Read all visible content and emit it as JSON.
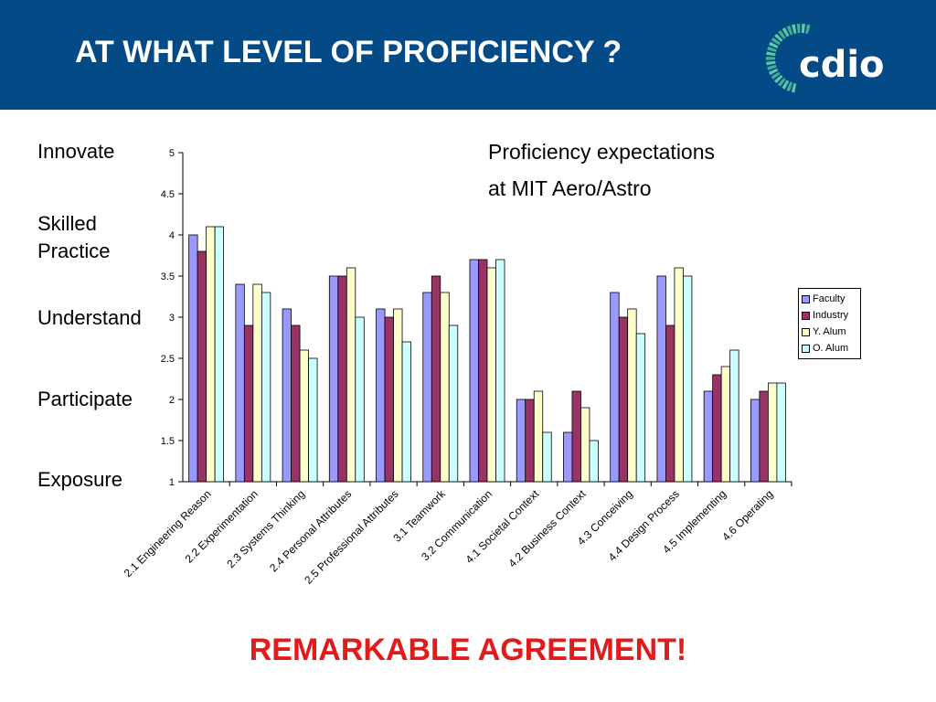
{
  "slide": {
    "title": "AT WHAT LEVEL OF PROFICIENCY ?",
    "logo_text": "cdio",
    "caption_line1": "Proficiency expectations",
    "caption_line2": "at MIT Aero/Astro",
    "remark": "REMARKABLE AGREEMENT!",
    "levels": [
      "Innovate",
      "Skilled Practice",
      "Understand",
      "Participate",
      "Exposure"
    ],
    "colors": {
      "header": "#034a86",
      "remark": "#e21a1a"
    }
  },
  "chart_data": {
    "type": "bar",
    "title": "",
    "xlabel": "",
    "ylabel": "",
    "ylim": [
      1,
      5
    ],
    "yticks": [
      "1",
      "1.5",
      "2",
      "2.5",
      "3",
      "3.5",
      "4",
      "4.5",
      "5"
    ],
    "grid": false,
    "legend_position": "right",
    "categories": [
      "2.1 Engineering Reason",
      "2.2 Experimentation",
      "2.3 Systems Thinking",
      "2.4 Personal Attributes",
      "2.5 Professional Attributes",
      "3.1 Teamwork",
      "3.2 Communication",
      "4.1 Societal Context",
      "4.2 Business Context",
      "4.3 Conceiving",
      "4.4 Design Process",
      "4.5 Implementing",
      "4.6 Operating"
    ],
    "series": [
      {
        "name": "Faculty",
        "color": "#9999ff",
        "values": [
          4.0,
          3.4,
          3.1,
          3.5,
          3.1,
          3.3,
          3.7,
          2.0,
          1.6,
          3.3,
          3.5,
          2.1,
          2.0
        ]
      },
      {
        "name": "Industry",
        "color": "#993366",
        "values": [
          3.8,
          2.9,
          2.9,
          3.5,
          3.0,
          3.5,
          3.7,
          2.0,
          2.1,
          3.0,
          2.9,
          2.3,
          2.1
        ]
      },
      {
        "name": "Y. Alum",
        "color": "#ffffcc",
        "values": [
          4.1,
          3.4,
          2.6,
          3.6,
          3.1,
          3.3,
          3.6,
          2.1,
          1.9,
          3.1,
          3.6,
          2.4,
          2.2
        ]
      },
      {
        "name": "O. Alum",
        "color": "#ccffff",
        "values": [
          4.1,
          3.3,
          2.5,
          3.0,
          2.7,
          2.9,
          3.7,
          1.6,
          1.5,
          2.8,
          3.5,
          2.6,
          2.2
        ]
      }
    ]
  }
}
